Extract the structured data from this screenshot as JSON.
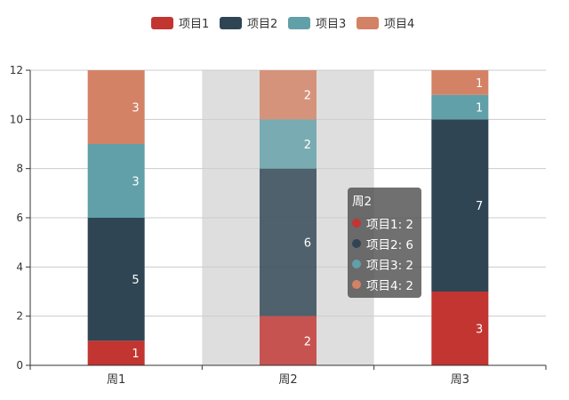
{
  "chart_data": {
    "type": "bar",
    "stacked": true,
    "categories": [
      "周1",
      "周2",
      "周3"
    ],
    "series": [
      {
        "name": "项目1",
        "color": "#c23531",
        "values": [
          1,
          2,
          3
        ]
      },
      {
        "name": "项目2",
        "color": "#2f4554",
        "values": [
          5,
          6,
          7
        ]
      },
      {
        "name": "项目3",
        "color": "#61a0a8",
        "values": [
          3,
          2,
          1
        ]
      },
      {
        "name": "项目4",
        "color": "#d48265",
        "values": [
          3,
          2,
          1
        ]
      }
    ],
    "ylim": [
      0,
      12
    ],
    "yticks": [
      "0",
      "2",
      "4",
      "6",
      "8",
      "10",
      "12"
    ],
    "grid": true,
    "legend_position": "top",
    "highlighted_category": "周2"
  },
  "tooltip": {
    "title": "周2",
    "rows": [
      {
        "text": "项目1: 2",
        "color": "#c23531"
      },
      {
        "text": "项目2: 6",
        "color": "#2f4554"
      },
      {
        "text": "项目3: 2",
        "color": "#61a0a8"
      },
      {
        "text": "项目4: 2",
        "color": "#d48265"
      }
    ]
  }
}
